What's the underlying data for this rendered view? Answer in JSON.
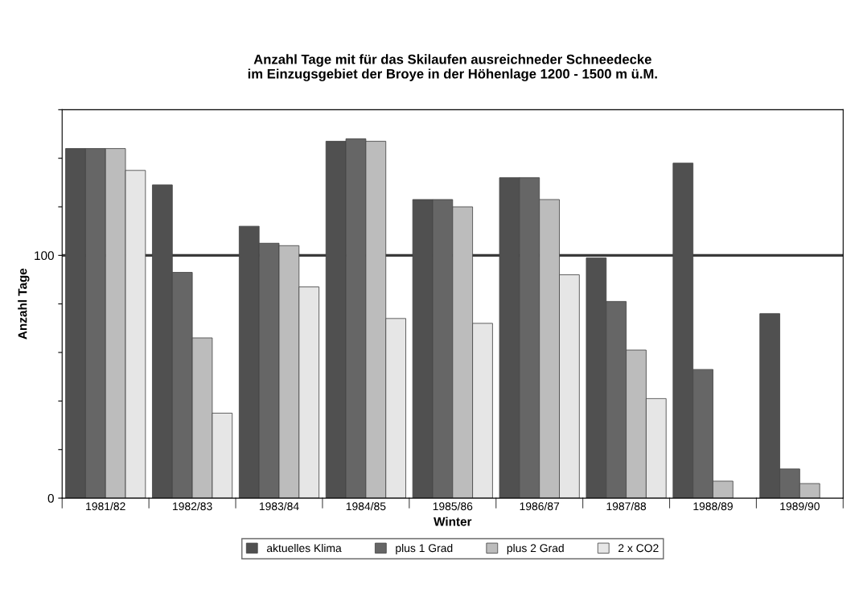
{
  "chart_data": {
    "type": "bar",
    "title": "Anzahl Tage mit für das Skilaufen ausreichneder Schneedecke\nim Einzugsgebiet der Broye in der Höhenlage 1200 - 1500 m ü.M.",
    "xlabel": "Winter",
    "ylabel": "Anzahl Tage",
    "categories": [
      "1981/82",
      "1982/83",
      "1983/84",
      "1984/85",
      "1985/86",
      "1986/87",
      "1987/88",
      "1988/89",
      "1989/90"
    ],
    "series": [
      {
        "name": "aktuelles Klima",
        "color": "#505050",
        "values": [
          144,
          129,
          112,
          147,
          123,
          132,
          99,
          138,
          76
        ]
      },
      {
        "name": "plus 1 Grad",
        "color": "#666666",
        "values": [
          144,
          93,
          105,
          148,
          123,
          132,
          81,
          53,
          12
        ]
      },
      {
        "name": "plus 2 Grad",
        "color": "#bcbcbc",
        "values": [
          144,
          66,
          104,
          147,
          120,
          123,
          61,
          7,
          6
        ]
      },
      {
        "name": "2 x CO2",
        "color": "#e6e6e6",
        "values": [
          135,
          35,
          87,
          74,
          72,
          92,
          41,
          null,
          null
        ]
      }
    ],
    "ylim": [
      0,
      160
    ],
    "yticks": [
      0,
      {
        "value": 20,
        "label": null
      },
      {
        "value": 40,
        "label": null
      },
      {
        "value": 60,
        "label": null
      },
      {
        "value": 80,
        "label": null
      },
      100,
      {
        "value": 120,
        "label": null
      },
      {
        "value": 140,
        "label": null
      },
      {
        "value": 160,
        "label": null
      }
    ],
    "ref_lines": [
      {
        "axis": "y",
        "value": 100,
        "label": null,
        "color": "#3a3a3a"
      }
    ],
    "grid": false,
    "legend": "bottom"
  }
}
